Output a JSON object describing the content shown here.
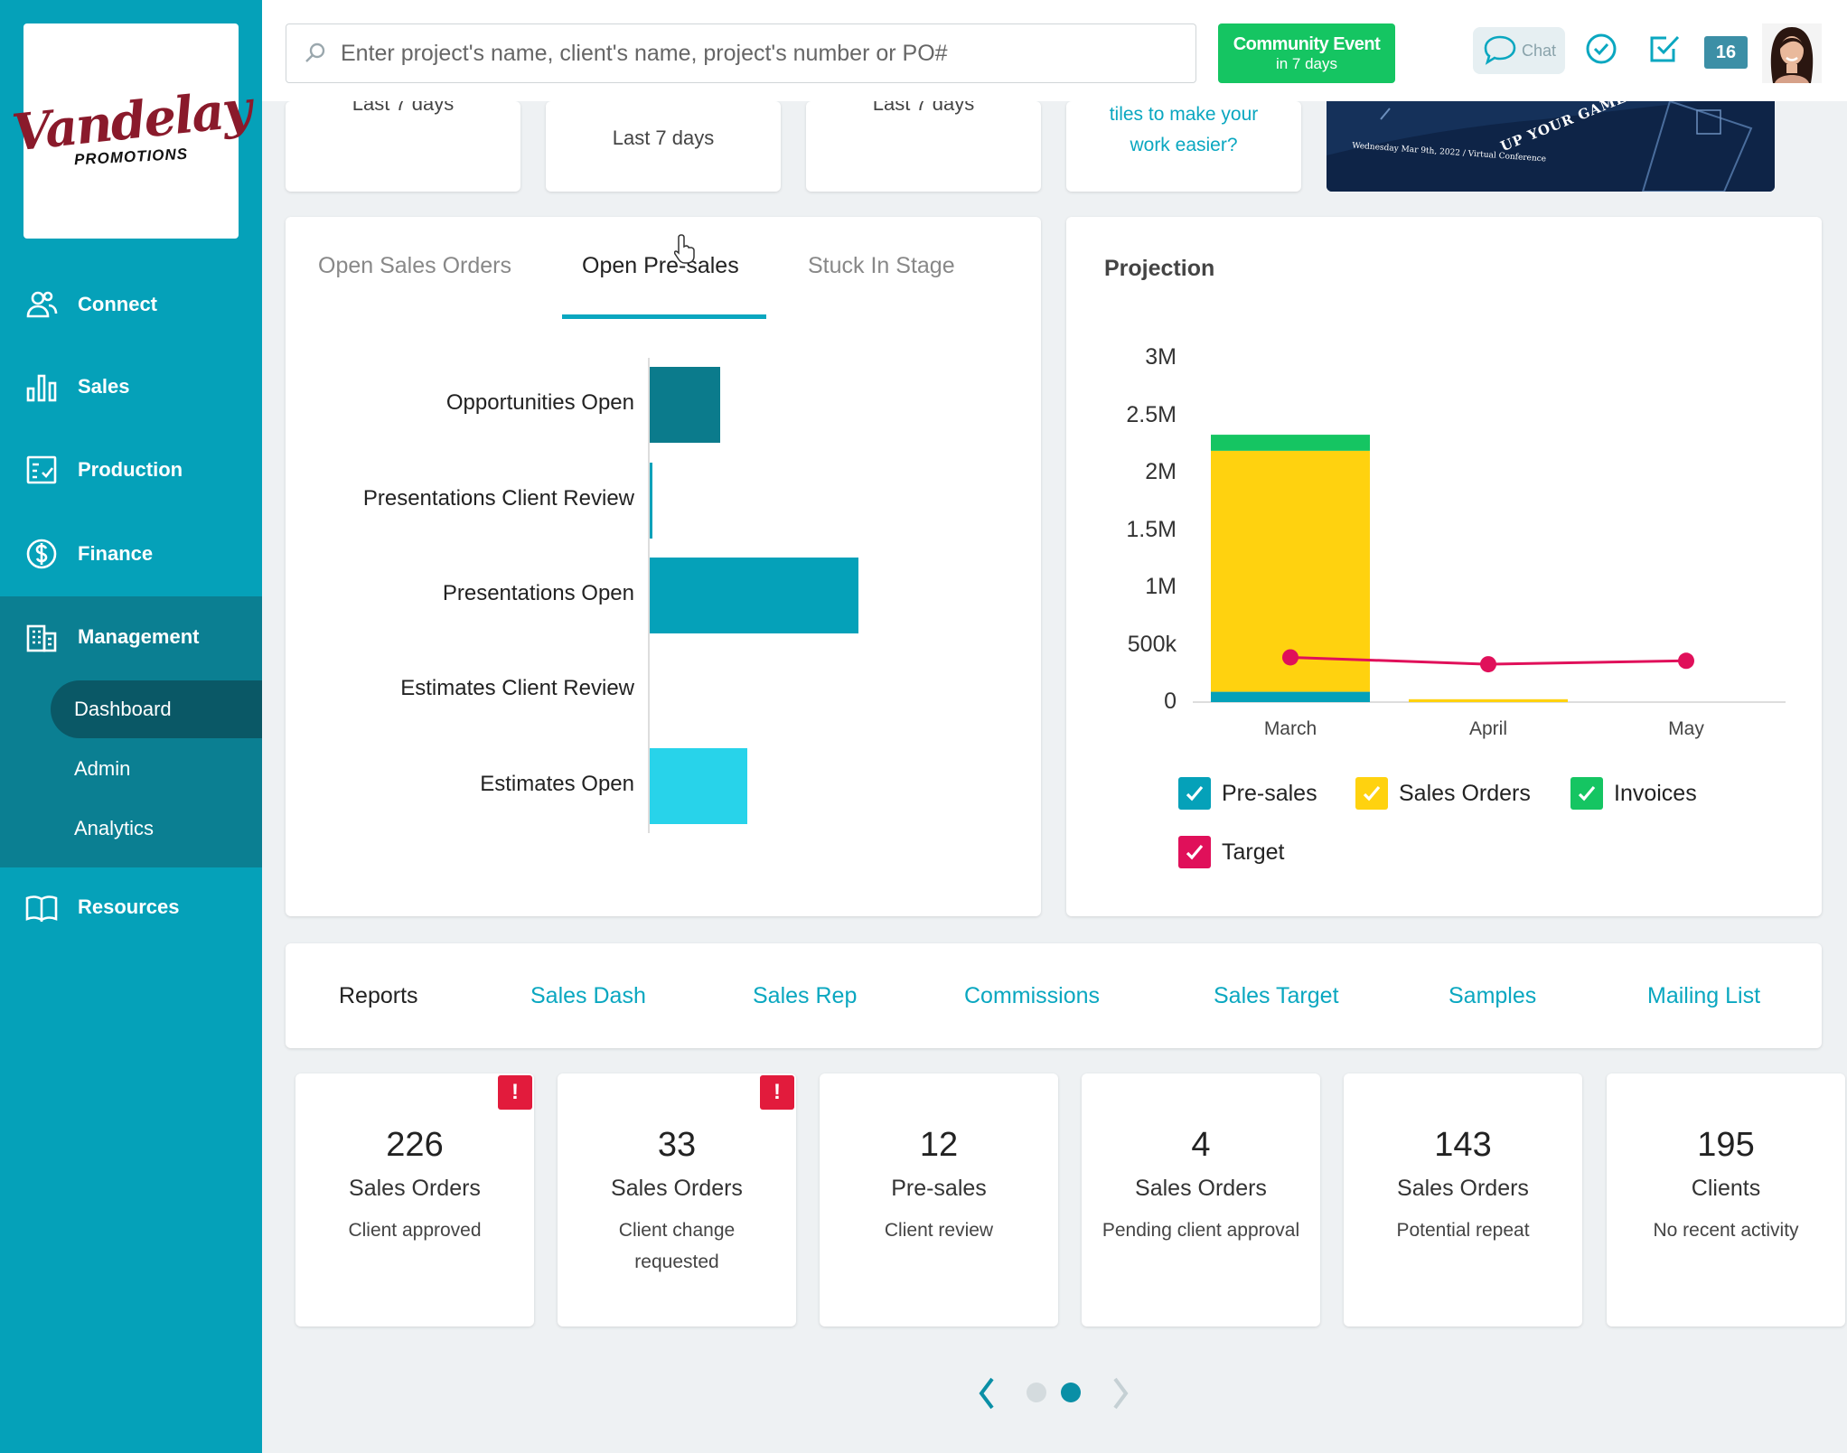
{
  "brand": {
    "logo_main": "Vandelay",
    "logo_sub": "PROMOTIONS"
  },
  "nav": {
    "items": [
      {
        "label": "Connect",
        "icon": "people-icon"
      },
      {
        "label": "Sales",
        "icon": "bar-chart-icon"
      },
      {
        "label": "Production",
        "icon": "checklist-icon"
      },
      {
        "label": "Finance",
        "icon": "dollar-icon"
      },
      {
        "label": "Management",
        "icon": "building-icon"
      },
      {
        "label": "Resources",
        "icon": "book-icon"
      }
    ],
    "management_sub": [
      {
        "label": "Dashboard",
        "active": true
      },
      {
        "label": "Admin",
        "active": false
      },
      {
        "label": "Analytics",
        "active": false
      }
    ]
  },
  "topbar": {
    "search_placeholder": "Enter project's name, client's name, project's number or PO#",
    "event_title": "Community Event",
    "event_sub": "in 7 days",
    "chat_label": "Chat",
    "notification_count": "16"
  },
  "top_cards": {
    "card1_label": "Last 7 days",
    "card2_label": "Last 7 days",
    "card3_label": "Last 7 days",
    "tip_line1": "tiles to make your",
    "tip_line2": "work easier?",
    "banner_text": "UP YOUR GAME",
    "banner_date": "Wednesday Mar 9th, 2022 / Virtual Conference"
  },
  "presales": {
    "tabs": [
      "Open Sales Orders",
      "Open Pre-sales",
      "Stuck In Stage"
    ],
    "active_tab": 1,
    "chart_data": {
      "type": "bar",
      "orientation": "horizontal",
      "categories": [
        "Opportunities Open",
        "Presentations Client Review",
        "Presentations Open",
        "Estimates Client Review",
        "Estimates Open"
      ],
      "values": [
        26,
        1,
        77,
        0,
        36
      ],
      "colors": [
        "#0b7b8c",
        "#05a1b9",
        "#05a1b9",
        "#05a1b9",
        "#28d3ea"
      ],
      "xlim": [
        0,
        100
      ]
    }
  },
  "projection": {
    "title": "Projection",
    "chart_data": {
      "type": "bar",
      "stacked": true,
      "categories": [
        "March",
        "April",
        "May"
      ],
      "yticks": [
        "3M",
        "2.5M",
        "2M",
        "1.5M",
        "1M",
        "500k",
        "0"
      ],
      "ylim": [
        0,
        3000000
      ],
      "series": [
        {
          "name": "Pre-sales",
          "color": "#05a1b9",
          "values": [
            90000,
            0,
            0
          ]
        },
        {
          "name": "Sales Orders",
          "color": "#ffd20f",
          "values": [
            2100000,
            25000,
            0
          ]
        },
        {
          "name": "Invoices",
          "color": "#15c562",
          "values": [
            140000,
            0,
            0
          ]
        },
        {
          "name": "Target",
          "color": "#e0105a",
          "type": "line",
          "values": [
            390000,
            330000,
            360000
          ]
        }
      ],
      "legend_placement": "bottom"
    }
  },
  "reports": {
    "title": "Reports",
    "links": [
      "Sales Dash",
      "Sales Rep",
      "Commissions",
      "Sales Target",
      "Samples",
      "Mailing List"
    ]
  },
  "kpis": [
    {
      "num": "226",
      "category": "Sales Orders",
      "desc": "Client approved",
      "alert": true
    },
    {
      "num": "33",
      "category": "Sales Orders",
      "desc": "Client change requested",
      "alert": true
    },
    {
      "num": "12",
      "category": "Pre-sales",
      "desc": "Client review",
      "alert": false
    },
    {
      "num": "4",
      "category": "Sales Orders",
      "desc": "Pending client approval",
      "alert": false
    },
    {
      "num": "143",
      "category": "Sales Orders",
      "desc": "Potential repeat",
      "alert": false
    },
    {
      "num": "195",
      "category": "Clients",
      "desc": "No recent activity",
      "alert": false
    }
  ],
  "alert_glyph": "!",
  "pager": {
    "pages": 2,
    "current": 2
  }
}
